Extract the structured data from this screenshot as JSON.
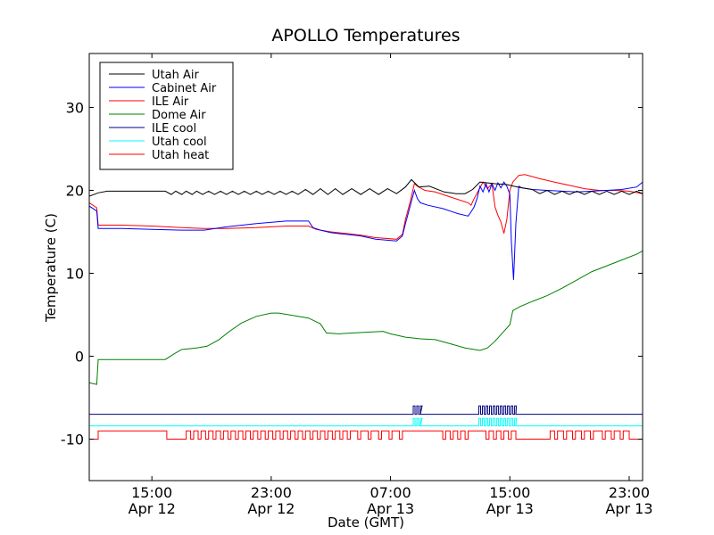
{
  "chart_data": {
    "type": "line",
    "title": "APOLLO Temperatures",
    "xlabel": "Date (GMT)",
    "ylabel": "Temperature (C)",
    "x_units": "hours since Apr 12 00:00 GMT",
    "xlim": [
      10.8,
      47.9
    ],
    "ylim": [
      -15,
      36.5
    ],
    "grid": false,
    "legend_position": "top-left",
    "y_ticks": [
      {
        "value": 30,
        "label": "30"
      },
      {
        "value": 20,
        "label": "20"
      },
      {
        "value": 10,
        "label": "10"
      },
      {
        "value": 0,
        "label": "0"
      },
      {
        "value": -10,
        "label": "-10"
      }
    ],
    "x_ticks": [
      {
        "value": 15,
        "label_time": "15:00",
        "label_date": "Apr 12"
      },
      {
        "value": 23,
        "label_time": "23:00",
        "label_date": "Apr 12"
      },
      {
        "value": 31,
        "label_time": "07:00",
        "label_date": "Apr 13"
      },
      {
        "value": 39,
        "label_time": "15:00",
        "label_date": "Apr 13"
      },
      {
        "value": 47,
        "label_time": "23:00",
        "label_date": "Apr 13"
      }
    ],
    "series": [
      {
        "name": "Utah Air",
        "color": "#000000",
        "points": [
          [
            10.8,
            19.3
          ],
          [
            11.4,
            19.7
          ],
          [
            12,
            19.9
          ],
          [
            15,
            19.9
          ],
          [
            15.9,
            19.9
          ],
          [
            16.3,
            19.5
          ],
          [
            16.6,
            19.9
          ],
          [
            17,
            19.5
          ],
          [
            17.3,
            19.9
          ],
          [
            17.7,
            19.5
          ],
          [
            18,
            19.9
          ],
          [
            18.4,
            19.5
          ],
          [
            18.8,
            19.9
          ],
          [
            19.2,
            19.5
          ],
          [
            19.6,
            19.9
          ],
          [
            20,
            19.5
          ],
          [
            20.4,
            19.9
          ],
          [
            20.8,
            19.5
          ],
          [
            21.2,
            19.9
          ],
          [
            21.6,
            19.5
          ],
          [
            22,
            19.9
          ],
          [
            22.4,
            19.5
          ],
          [
            22.8,
            19.9
          ],
          [
            23.2,
            19.5
          ],
          [
            23.6,
            19.9
          ],
          [
            24,
            19.5
          ],
          [
            24.4,
            19.9
          ],
          [
            24.8,
            19.5
          ],
          [
            25.3,
            20.1
          ],
          [
            25.8,
            19.5
          ],
          [
            26.3,
            20.2
          ],
          [
            26.8,
            19.5
          ],
          [
            27.3,
            20.2
          ],
          [
            27.8,
            19.5
          ],
          [
            28.4,
            20.2
          ],
          [
            29,
            19.5
          ],
          [
            29.6,
            20.2
          ],
          [
            30.2,
            19.5
          ],
          [
            30.8,
            20.2
          ],
          [
            31.4,
            19.6
          ],
          [
            32,
            20.4
          ],
          [
            32.4,
            21.3
          ],
          [
            32.9,
            20.4
          ],
          [
            33.6,
            20.5
          ],
          [
            34.6,
            19.8
          ],
          [
            35.4,
            19.6
          ],
          [
            36,
            19.6
          ],
          [
            36.5,
            20.1
          ],
          [
            37,
            21
          ],
          [
            38,
            20.8
          ],
          [
            38.8,
            20.7
          ],
          [
            39.5,
            20.4
          ],
          [
            40.5,
            20.1
          ],
          [
            41,
            19.6
          ],
          [
            41.5,
            20
          ],
          [
            42,
            19.5
          ],
          [
            42.5,
            19.9
          ],
          [
            43,
            19.5
          ],
          [
            43.5,
            19.9
          ],
          [
            44,
            19.5
          ],
          [
            44.5,
            19.9
          ],
          [
            45,
            19.5
          ],
          [
            45.5,
            19.9
          ],
          [
            46,
            19.5
          ],
          [
            46.5,
            19.9
          ],
          [
            47,
            19.5
          ],
          [
            47.5,
            19.9
          ],
          [
            47.9,
            19.6
          ]
        ]
      },
      {
        "name": "Cabinet Air",
        "color": "#0000ff",
        "points": [
          [
            10.8,
            18.1
          ],
          [
            11.3,
            17.5
          ],
          [
            11.4,
            15.4
          ],
          [
            13,
            15.4
          ],
          [
            15,
            15.3
          ],
          [
            17,
            15.2
          ],
          [
            18.5,
            15.2
          ],
          [
            20,
            15.6
          ],
          [
            22,
            16
          ],
          [
            24,
            16.3
          ],
          [
            25.5,
            16.3
          ],
          [
            25.8,
            15.5
          ],
          [
            26.3,
            15.2
          ],
          [
            27,
            14.9
          ],
          [
            28,
            14.7
          ],
          [
            29,
            14.5
          ],
          [
            30,
            14.1
          ],
          [
            31.4,
            13.9
          ],
          [
            31.8,
            14.5
          ],
          [
            32,
            16
          ],
          [
            32.3,
            18
          ],
          [
            32.6,
            20
          ],
          [
            32.8,
            19
          ],
          [
            33,
            18.5
          ],
          [
            33.5,
            18.2
          ],
          [
            34.5,
            17.8
          ],
          [
            35.5,
            17.2
          ],
          [
            36.2,
            16.9
          ],
          [
            36.4,
            17.4
          ],
          [
            36.6,
            18
          ],
          [
            36.8,
            19
          ],
          [
            37,
            20.5
          ],
          [
            37.2,
            19.8
          ],
          [
            37.4,
            20.8
          ],
          [
            37.6,
            19.8
          ],
          [
            37.8,
            20.8
          ],
          [
            38,
            20
          ],
          [
            38.2,
            20.9
          ],
          [
            38.4,
            20.3
          ],
          [
            38.6,
            21
          ],
          [
            38.8,
            20.5
          ],
          [
            39,
            19.5
          ],
          [
            39.1,
            14
          ],
          [
            39.25,
            9.2
          ],
          [
            39.4,
            16
          ],
          [
            39.6,
            20.5
          ],
          [
            39.8,
            20.3
          ],
          [
            40.5,
            20.1
          ],
          [
            41.5,
            20
          ],
          [
            42.5,
            19.9
          ],
          [
            43.5,
            19.8
          ],
          [
            44.5,
            19.9
          ],
          [
            45.5,
            20
          ],
          [
            46.5,
            20.1
          ],
          [
            47.5,
            20.4
          ],
          [
            47.9,
            21
          ]
        ]
      },
      {
        "name": "ILE Air",
        "color": "#ff0000",
        "points": [
          [
            10.8,
            18.5
          ],
          [
            11.3,
            17.9
          ],
          [
            11.4,
            15.8
          ],
          [
            13,
            15.8
          ],
          [
            15,
            15.7
          ],
          [
            17,
            15.5
          ],
          [
            18.5,
            15.4
          ],
          [
            20,
            15.4
          ],
          [
            22,
            15.5
          ],
          [
            24,
            15.7
          ],
          [
            25.5,
            15.7
          ],
          [
            26,
            15.3
          ],
          [
            27,
            15
          ],
          [
            28,
            14.8
          ],
          [
            29,
            14.6
          ],
          [
            30,
            14.3
          ],
          [
            31.4,
            14.1
          ],
          [
            31.8,
            14.7
          ],
          [
            32,
            16.5
          ],
          [
            32.3,
            18.5
          ],
          [
            32.6,
            20.8
          ],
          [
            32.8,
            20.5
          ],
          [
            33.3,
            20
          ],
          [
            34,
            19.8
          ],
          [
            35,
            19.2
          ],
          [
            36.2,
            18.5
          ],
          [
            36.4,
            18.2
          ],
          [
            36.6,
            19
          ],
          [
            36.9,
            20
          ],
          [
            37.2,
            21
          ],
          [
            37.5,
            20.2
          ],
          [
            37.8,
            20.8
          ],
          [
            38,
            18
          ],
          [
            38.2,
            17
          ],
          [
            38.4,
            16.2
          ],
          [
            38.6,
            14.8
          ],
          [
            38.8,
            16.5
          ],
          [
            39,
            20
          ],
          [
            39.2,
            21
          ],
          [
            39.6,
            21.8
          ],
          [
            40,
            21.9
          ],
          [
            41,
            21.4
          ],
          [
            42,
            21
          ],
          [
            43,
            20.6
          ],
          [
            44,
            20.2
          ],
          [
            45,
            20
          ],
          [
            46,
            20
          ],
          [
            47,
            19.9
          ],
          [
            47.9,
            19.6
          ]
        ]
      },
      {
        "name": "Dome Air",
        "color": "#008000",
        "points": [
          [
            10.8,
            -3.2
          ],
          [
            11.3,
            -3.4
          ],
          [
            11.4,
            -0.4
          ],
          [
            13,
            -0.4
          ],
          [
            15,
            -0.4
          ],
          [
            15.9,
            -0.4
          ],
          [
            16.5,
            0.3
          ],
          [
            17,
            0.8
          ],
          [
            18,
            1
          ],
          [
            18.7,
            1.2
          ],
          [
            19.5,
            2
          ],
          [
            20.2,
            3
          ],
          [
            21,
            4
          ],
          [
            22,
            4.8
          ],
          [
            23,
            5.2
          ],
          [
            23.5,
            5.2
          ],
          [
            24.5,
            4.9
          ],
          [
            25.5,
            4.6
          ],
          [
            26.3,
            3.9
          ],
          [
            26.7,
            2.8
          ],
          [
            27.5,
            2.7
          ],
          [
            28.5,
            2.8
          ],
          [
            29.5,
            2.9
          ],
          [
            30.5,
            3
          ],
          [
            31,
            2.7
          ],
          [
            32,
            2.3
          ],
          [
            33,
            2.1
          ],
          [
            34,
            2
          ],
          [
            35,
            1.5
          ],
          [
            36,
            1
          ],
          [
            37,
            0.7
          ],
          [
            37.5,
            1
          ],
          [
            38,
            1.8
          ],
          [
            38.5,
            2.8
          ],
          [
            39,
            3.8
          ],
          [
            39.2,
            5.5
          ],
          [
            39.7,
            6
          ],
          [
            40.5,
            6.6
          ],
          [
            41.5,
            7.3
          ],
          [
            42.5,
            8.2
          ],
          [
            43.5,
            9.2
          ],
          [
            44.5,
            10.2
          ],
          [
            45.5,
            10.9
          ],
          [
            46.5,
            11.6
          ],
          [
            47.5,
            12.3
          ],
          [
            47.9,
            12.7
          ]
        ]
      },
      {
        "name": "ILE cool",
        "color": "#000080",
        "base": -7.0,
        "pulse_high": -6.0,
        "pulse_windows": [
          [
            32.4,
            33.0
          ],
          [
            36.8,
            39.4
          ]
        ]
      },
      {
        "name": "Utah cool",
        "color": "#00ffff",
        "base": -8.4,
        "pulse_high": -7.5,
        "pulse_windows": [
          [
            32.4,
            33.0
          ],
          [
            36.8,
            39.4
          ]
        ]
      },
      {
        "name": "Utah heat",
        "color": "#ff0000",
        "base": -9.0,
        "low": -10.0,
        "low_windows": [
          [
            10.8,
            11.4
          ],
          [
            16.0,
            17.3
          ],
          [
            17.6,
            17.8
          ],
          [
            18.1,
            18.3
          ],
          [
            18.6,
            18.8
          ],
          [
            19.1,
            19.3
          ],
          [
            19.6,
            19.8
          ],
          [
            20.1,
            20.3
          ],
          [
            20.6,
            20.8
          ],
          [
            21.1,
            21.3
          ],
          [
            21.6,
            21.8
          ],
          [
            22.1,
            22.3
          ],
          [
            22.6,
            22.8
          ],
          [
            23.1,
            23.3
          ],
          [
            23.6,
            23.8
          ],
          [
            24.1,
            24.3
          ],
          [
            24.6,
            24.8
          ],
          [
            25.1,
            25.3
          ],
          [
            25.6,
            25.8
          ],
          [
            26.1,
            26.3
          ],
          [
            26.6,
            26.8
          ],
          [
            27.1,
            27.3
          ],
          [
            27.6,
            27.8
          ],
          [
            28.1,
            28.3
          ],
          [
            28.8,
            29
          ],
          [
            29.5,
            29.7
          ],
          [
            30.2,
            30.4
          ],
          [
            30.9,
            31.1
          ],
          [
            31.6,
            31.8
          ],
          [
            34.5,
            34.7
          ],
          [
            35.0,
            35.2
          ],
          [
            35.5,
            35.7
          ],
          [
            36.0,
            36.2
          ],
          [
            37.4,
            37.6
          ],
          [
            37.9,
            38.1
          ],
          [
            38.4,
            38.6
          ],
          [
            38.9,
            39.1
          ],
          [
            39.4,
            41.7
          ],
          [
            42.0,
            42.2
          ],
          [
            42.6,
            42.8
          ],
          [
            43.2,
            43.4
          ],
          [
            43.8,
            44
          ],
          [
            44.4,
            44.6
          ],
          [
            45.2,
            45.4
          ],
          [
            45.8,
            46
          ],
          [
            46.4,
            46.6
          ],
          [
            47.0,
            47.9
          ]
        ]
      }
    ]
  }
}
